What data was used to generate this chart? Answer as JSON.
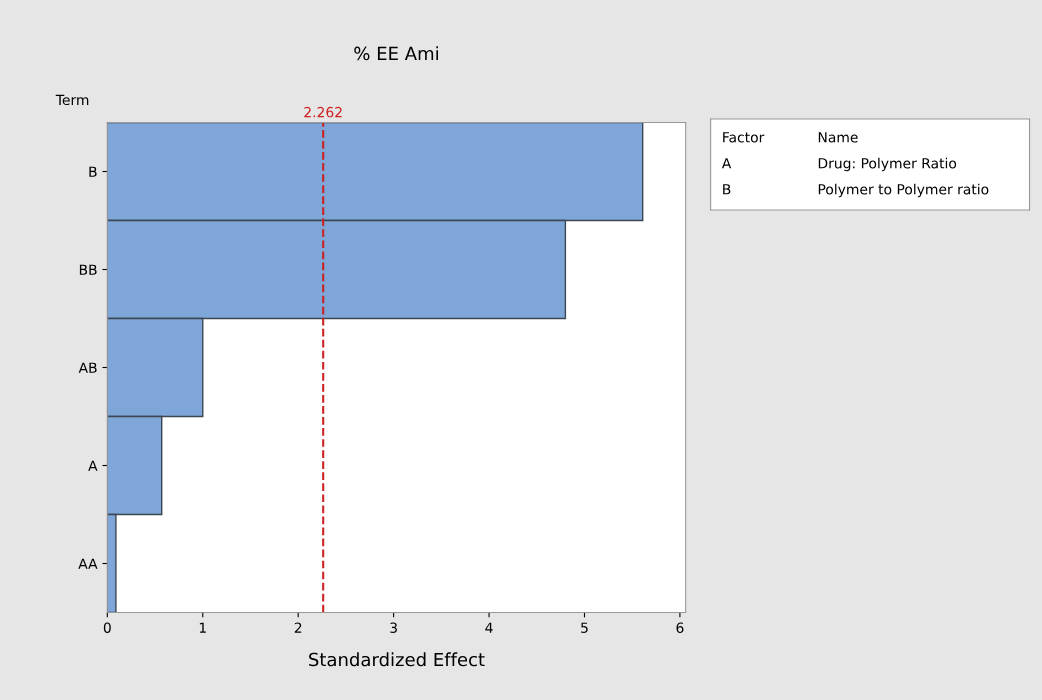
{
  "chart_data": {
    "type": "bar",
    "orientation": "horizontal",
    "title": "% EE Ami",
    "xlabel": "Standardized Effect",
    "ylabel": "Term",
    "categories": [
      "B",
      "BB",
      "AB",
      "A",
      "AA"
    ],
    "values": [
      5.61,
      4.8,
      1.0,
      0.57,
      0.09
    ],
    "color": "#7ea6d9",
    "xlim": [
      0,
      6.06
    ],
    "xticks": [
      0,
      1,
      2,
      3,
      4,
      5,
      6
    ],
    "grid": false,
    "ref_lines": [
      {
        "axis": "x",
        "value": 2.262,
        "label": "2.262",
        "color": "#cc2222",
        "line_style": "dashed"
      }
    ],
    "annotations": [
      "Factor",
      "Name",
      "A",
      "Drug: Polymer Ratio",
      "B",
      "Polymer to Polymer ratio"
    ]
  }
}
